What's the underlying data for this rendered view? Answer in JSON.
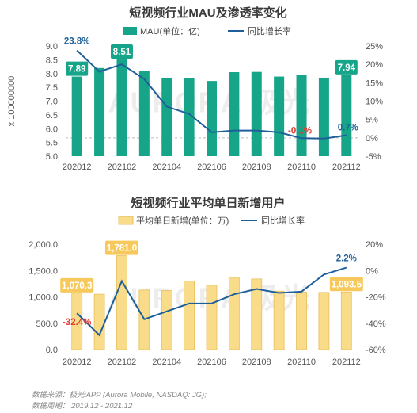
{
  "chart_data": [
    {
      "type": "bar",
      "title": "短视频行业MAU及渗透率变化",
      "ylabel": "x 100000000",
      "categories": [
        "202012",
        "202101",
        "202102",
        "202103",
        "202104",
        "202105",
        "202106",
        "202107",
        "202108",
        "202109",
        "202110",
        "202111",
        "202112"
      ],
      "x_tick_labels": [
        "202012",
        "202102",
        "202104",
        "202106",
        "202108",
        "202110",
        "202112"
      ],
      "ylim": [
        5.0,
        9.0
      ],
      "y_ticks": [
        "5.0",
        "5.5",
        "6.0",
        "6.5",
        "7.0",
        "7.5",
        "8.0",
        "8.5",
        "9.0"
      ],
      "y2lim": [
        -5,
        25
      ],
      "y2_ticks": [
        "-5%",
        "0%",
        "5%",
        "10%",
        "15%",
        "20%",
        "25%"
      ],
      "legend_position": "top",
      "series": [
        {
          "name": "MAU(单位：亿)",
          "type": "bar",
          "axis": "left",
          "color": "#17a589",
          "values": [
            7.89,
            8.2,
            8.51,
            8.1,
            7.85,
            7.82,
            7.73,
            8.05,
            8.06,
            7.89,
            7.96,
            7.85,
            7.94
          ]
        },
        {
          "name": "同比增长率",
          "type": "line",
          "axis": "right",
          "color": "#1f5f99",
          "values": [
            23.8,
            18.0,
            20.0,
            16.0,
            8.5,
            6.5,
            1.5,
            2.0,
            2.0,
            1.5,
            -0.1,
            -0.2,
            0.7
          ]
        }
      ],
      "bar_labels": [
        {
          "index": 0,
          "text": "7.89"
        },
        {
          "index": 2,
          "text": "8.51"
        },
        {
          "index": 12,
          "text": "7.94"
        }
      ],
      "line_labels": [
        {
          "index": 0,
          "text": "23.8%",
          "color": "#1f5f99"
        },
        {
          "index": 10,
          "text": "-0.1%",
          "color": "#e03c31"
        },
        {
          "index": 12,
          "text": "0.7%",
          "color": "#1f5f99"
        }
      ],
      "reference_line_right": 0
    },
    {
      "type": "bar",
      "title": "短视频行业平均单日新增用户",
      "categories": [
        "202012",
        "202101",
        "202102",
        "202103",
        "202104",
        "202105",
        "202106",
        "202107",
        "202108",
        "202109",
        "202110",
        "202111",
        "202112"
      ],
      "x_tick_labels": [
        "202012",
        "202102",
        "202104",
        "202106",
        "202108",
        "202110",
        "202112"
      ],
      "ylim": [
        0,
        2000
      ],
      "y_ticks": [
        "0.0",
        "500.0",
        "1,000.0",
        "1,500.0",
        "2,000.0"
      ],
      "y2lim": [
        -60,
        20
      ],
      "y2_ticks": [
        "-60%",
        "-40%",
        "-20%",
        "0%",
        "20%"
      ],
      "legend_position": "top",
      "series": [
        {
          "name": "平均单日新增(单位：万)",
          "type": "bar",
          "axis": "left",
          "color": "#f9dc8a",
          "values": [
            1070.3,
            1050,
            1781.0,
            1130,
            1120,
            1300,
            1220,
            1370,
            1340,
            1110,
            1090,
            1085,
            1093.5
          ]
        },
        {
          "name": "同比增长率",
          "type": "line",
          "axis": "right",
          "color": "#1f5f99",
          "values": [
            -32.4,
            -49.0,
            -8.0,
            -37.0,
            -31.0,
            -25.0,
            -25.0,
            -18.0,
            -14.0,
            -17.0,
            -16.0,
            -3.0,
            2.2
          ]
        }
      ],
      "bar_labels": [
        {
          "index": 0,
          "text": "1,070.3"
        },
        {
          "index": 2,
          "text": "1,781.0"
        },
        {
          "index": 12,
          "text": "1,093.5"
        }
      ],
      "line_labels": [
        {
          "index": 0,
          "text": "-32.4%",
          "color": "#e03c31"
        },
        {
          "index": 12,
          "text": "2.2%",
          "color": "#1f5f99"
        }
      ]
    }
  ],
  "watermark": "AURORA 极光",
  "source": {
    "line1": "数据来源：极光iAPP (Aurora Mobile, NASDAQ: JG);",
    "line2": "数据周期：   2019.12 - 2021.12"
  }
}
